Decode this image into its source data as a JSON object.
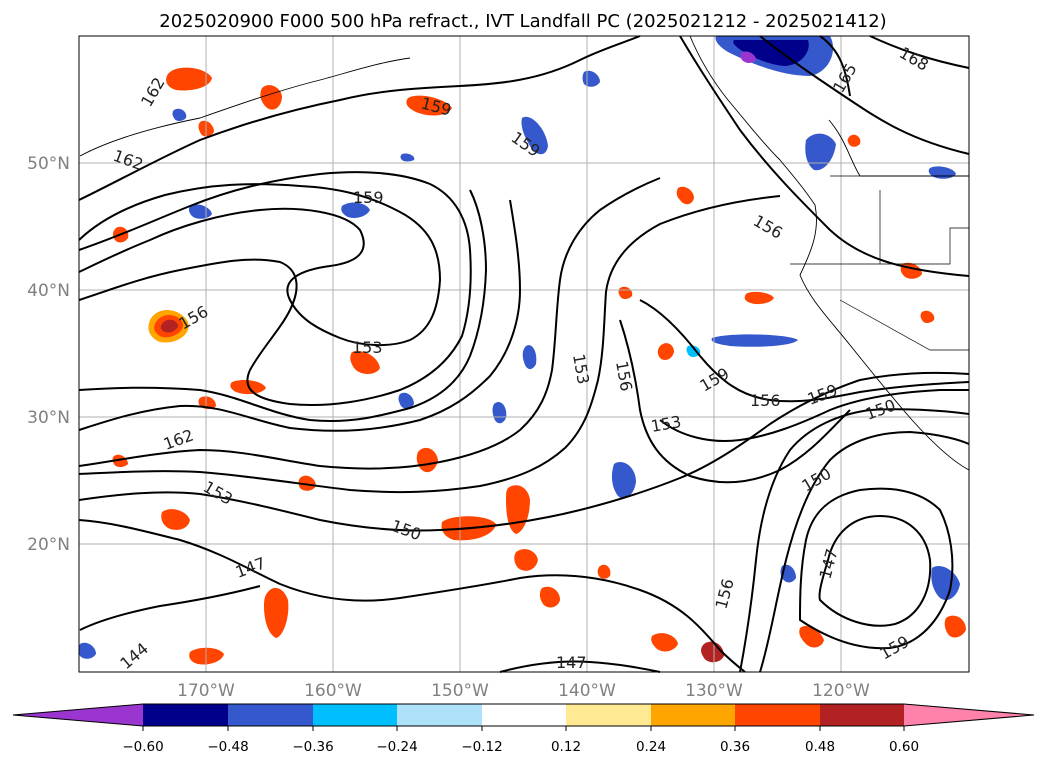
{
  "title": "2025020900 F000 500 hPa refract., IVT Landfall PC (2025021212 - 2025021412)",
  "map": {
    "lon_ticks": [
      "170°W",
      "160°W",
      "150°W",
      "140°W",
      "130°W",
      "120°W"
    ],
    "lat_ticks": [
      "50°N",
      "40°N",
      "30°N",
      "20°N"
    ],
    "contour_labels": [
      "159",
      "162",
      "162",
      "156",
      "159",
      "156",
      "153",
      "153",
      "156",
      "159",
      "156",
      "153",
      "159",
      "162",
      "153",
      "150",
      "147",
      "147",
      "144",
      "156",
      "147",
      "150",
      "159",
      "168",
      "165",
      "150",
      "159"
    ]
  },
  "colorbar": {
    "colors": [
      "#9a35d0",
      "#00008b",
      "#3558cc",
      "#00bfff",
      "#ade2f8",
      "#ffffff",
      "#ffe993",
      "#ffa500",
      "#ff4500",
      "#b22222",
      "#ff82ab"
    ],
    "labels": [
      "−0.60",
      "−0.48",
      "−0.36",
      "−0.24",
      "−0.12",
      "0.12",
      "0.24",
      "0.36",
      "0.48",
      "0.60"
    ]
  }
}
